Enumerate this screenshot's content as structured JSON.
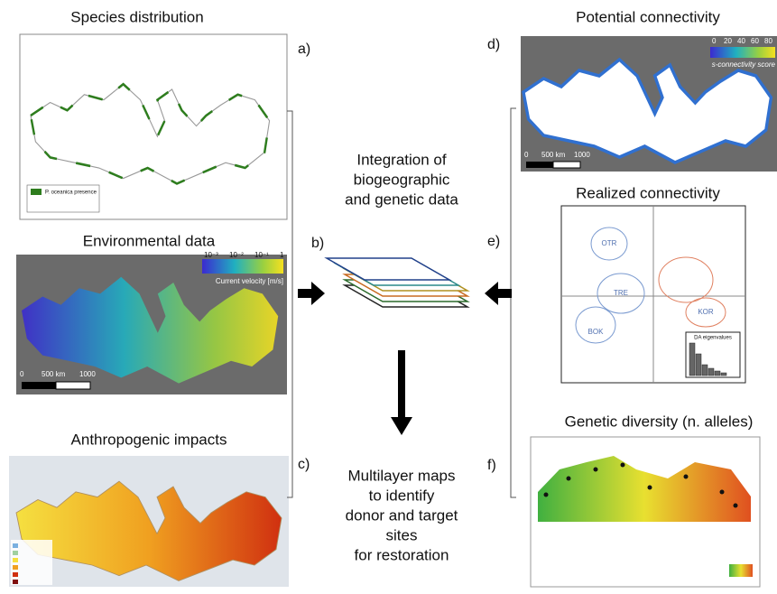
{
  "panels": [
    {
      "label": "a)",
      "title": "Species distribution",
      "legend": "P. oceanica presence"
    },
    {
      "label": "b)",
      "title": "Environmental data",
      "colorbar": [
        "10⁻³",
        "10⁻²",
        "10⁻¹",
        "1"
      ],
      "colorbar_title": "Current velocity [m/s]",
      "scale": [
        "0",
        "500 km",
        "1000"
      ]
    },
    {
      "label": "c)",
      "title": "Anthropogenic impacts"
    },
    {
      "label": "d)",
      "title": "Potential connectivity",
      "colorbar": [
        "0",
        "20",
        "40",
        "60",
        "80"
      ],
      "colorbar_title": "s-connectivity score",
      "scale": [
        "0",
        "500 km",
        "1000"
      ]
    },
    {
      "label": "e)",
      "title": "Realized connectivity",
      "groups": [
        "OTR",
        "TRE",
        "BOK",
        "KOR"
      ],
      "inset": "DA eigenvalues"
    },
    {
      "label": "f)",
      "title": "Genetic diversity (n. alleles)"
    }
  ],
  "center": {
    "integration": [
      "Integration of",
      "biogeographic",
      "and genetic data"
    ],
    "multilayer": [
      "Multilayer maps",
      "to identify",
      "donor and target",
      "sites",
      "for restoration"
    ]
  }
}
